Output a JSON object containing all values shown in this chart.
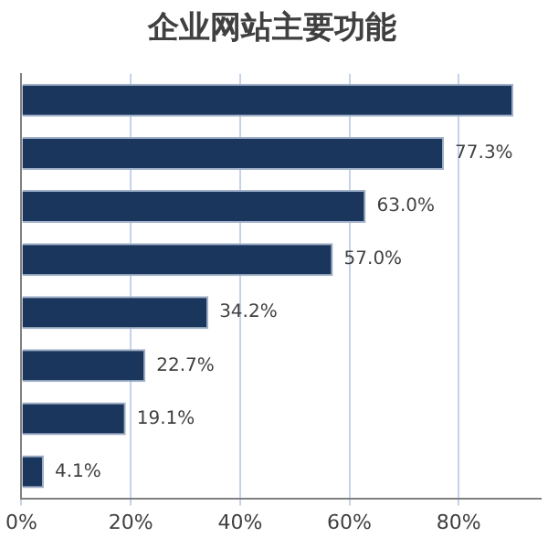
{
  "chart_data": {
    "type": "bar",
    "title": "企业网站主要功能",
    "orientation": "horizontal",
    "categories": [
      null,
      null,
      null,
      null,
      null,
      null,
      null,
      null
    ],
    "values": [
      90,
      77.3,
      63.0,
      57.0,
      34.2,
      22.7,
      19.1,
      4.1
    ],
    "value_labels": [
      null,
      "77.3%",
      "63.0%",
      "57.0%",
      "34.2%",
      "22.7%",
      "19.1%",
      "4.1%"
    ],
    "color": "#1b365d",
    "xlim": [
      0,
      95
    ],
    "xticks": [
      {
        "value": 0,
        "label": "0%"
      },
      {
        "value": 20,
        "label": "20%"
      },
      {
        "value": 40,
        "label": "40%"
      },
      {
        "value": 60,
        "label": "60%"
      },
      {
        "value": 80,
        "label": "80%"
      }
    ],
    "grid": "x",
    "legend": false
  }
}
